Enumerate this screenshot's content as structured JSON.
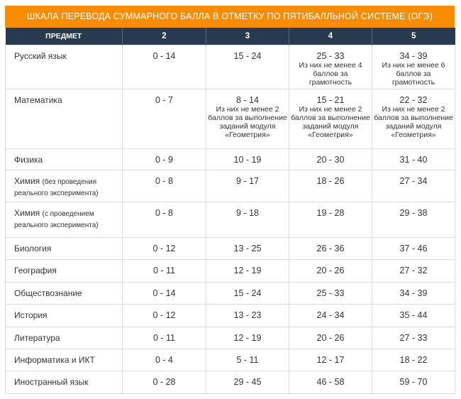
{
  "title": "ШКАЛА ПЕРЕВОДА СУММАРНОГО БАЛЛА В ОТМЕТКУ ПО ПЯТИБАЛЛЬНОЙ СИСТЕМЕ (ОГЭ)",
  "headers": [
    "ПРЕДМЕТ",
    "2",
    "3",
    "4",
    "5"
  ],
  "rows": [
    {
      "subject": "Русский язык",
      "c2": "0 - 14",
      "c3": "15 - 24",
      "c4": "25 - 33",
      "c4_note": "Из них не менее 4 баллов за грамотность",
      "c5": "34 - 39",
      "c5_note": "Из них не менее 6 баллов за грамотность"
    },
    {
      "subject": "Математика",
      "c2": "0 - 7",
      "c3": "8 - 14",
      "c3_note": "Из них не менее 2 баллов за выполнение заданий модуля «Геометрия»",
      "c4": "15 - 21",
      "c4_note": "Из них не менее 2 баллов за выполнение заданий модуля «Геометрия»",
      "c5": "22 - 32",
      "c5_note": "Из них не менее 2 баллов за выполнение заданий модуля «Геометрия»"
    },
    {
      "subject": "Физика",
      "c2": "0 - 9",
      "c3": "10 - 19",
      "c4": "20 - 30",
      "c5": "31 - 40"
    },
    {
      "subject": "Химия",
      "subject_note": "(без проведения реального эксперимента)",
      "c2": "0 - 8",
      "c3": "9 - 17",
      "c4": "18 - 26",
      "c5": "27 - 34"
    },
    {
      "subject": "Химия",
      "subject_note": "(с проведением реального эксперимента)",
      "c2": "0 - 8",
      "c3": "9 - 18",
      "c4": "19 - 28",
      "c5": "29 - 38"
    },
    {
      "subject": "Биология",
      "c2": "0 - 12",
      "c3": "13 - 25",
      "c4": "26 - 36",
      "c5": "37 - 46"
    },
    {
      "subject": "География",
      "c2": "0 - 11",
      "c3": "12 - 19",
      "c4": "20 - 26",
      "c5": "27 - 32"
    },
    {
      "subject": "Обществознание",
      "c2": "0 - 14",
      "c3": "15 - 24",
      "c4": "25 - 33",
      "c5": "34 - 39"
    },
    {
      "subject": "История",
      "c2": "0 - 12",
      "c3": "13 - 23",
      "c4": "24 - 34",
      "c5": "35 - 44"
    },
    {
      "subject": "Литература",
      "c2": "0 - 11",
      "c3": "12 - 19",
      "c4": "20 - 26",
      "c5": "27 - 33"
    },
    {
      "subject": "Информатика и ИКТ",
      "c2": "0 - 4",
      "c3": "5 - 11",
      "c4": "12 - 17",
      "c5": "18 - 22"
    },
    {
      "subject": "Иностранный язык",
      "c2": "0 - 28",
      "c3": "29 - 45",
      "c4": "46 - 58",
      "c5": "59 - 70"
    }
  ]
}
